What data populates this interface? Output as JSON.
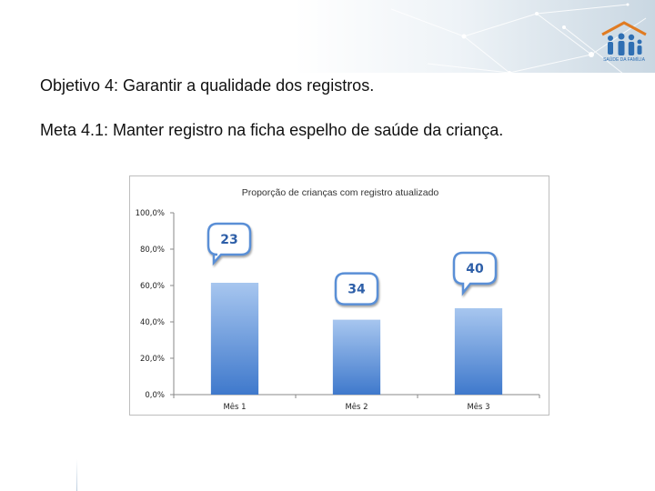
{
  "slide": {
    "objective": "Objetivo 4: Garantir a qualidade dos registros.",
    "goal": "Meta 4.1: Manter registro na ficha espelho de saúde da criança.",
    "logo_text": "SAÚDE DA FAMÍLIA"
  },
  "colors": {
    "bar_top": "#a7c6ef",
    "bar_bottom": "#3f79cc",
    "callout_fill": "#ffffff",
    "callout_border": "#5a8fd6",
    "callout_text": "#2e5fa8",
    "axis": "#888888"
  },
  "chart_data": {
    "type": "bar",
    "title": "Proporção de crianças com registro atualizado",
    "categories": [
      "Mês 1",
      "Mês 2",
      "Mês 3"
    ],
    "values": [
      61.5,
      41.2,
      47.5
    ],
    "ylim": [
      0,
      100
    ],
    "yticks": [
      "0,0%",
      "20,0%",
      "40,0%",
      "60,0%",
      "80,0%",
      "100,0%"
    ],
    "grid": false,
    "legend": "none",
    "annotations": [
      "23",
      "34",
      "40"
    ]
  }
}
